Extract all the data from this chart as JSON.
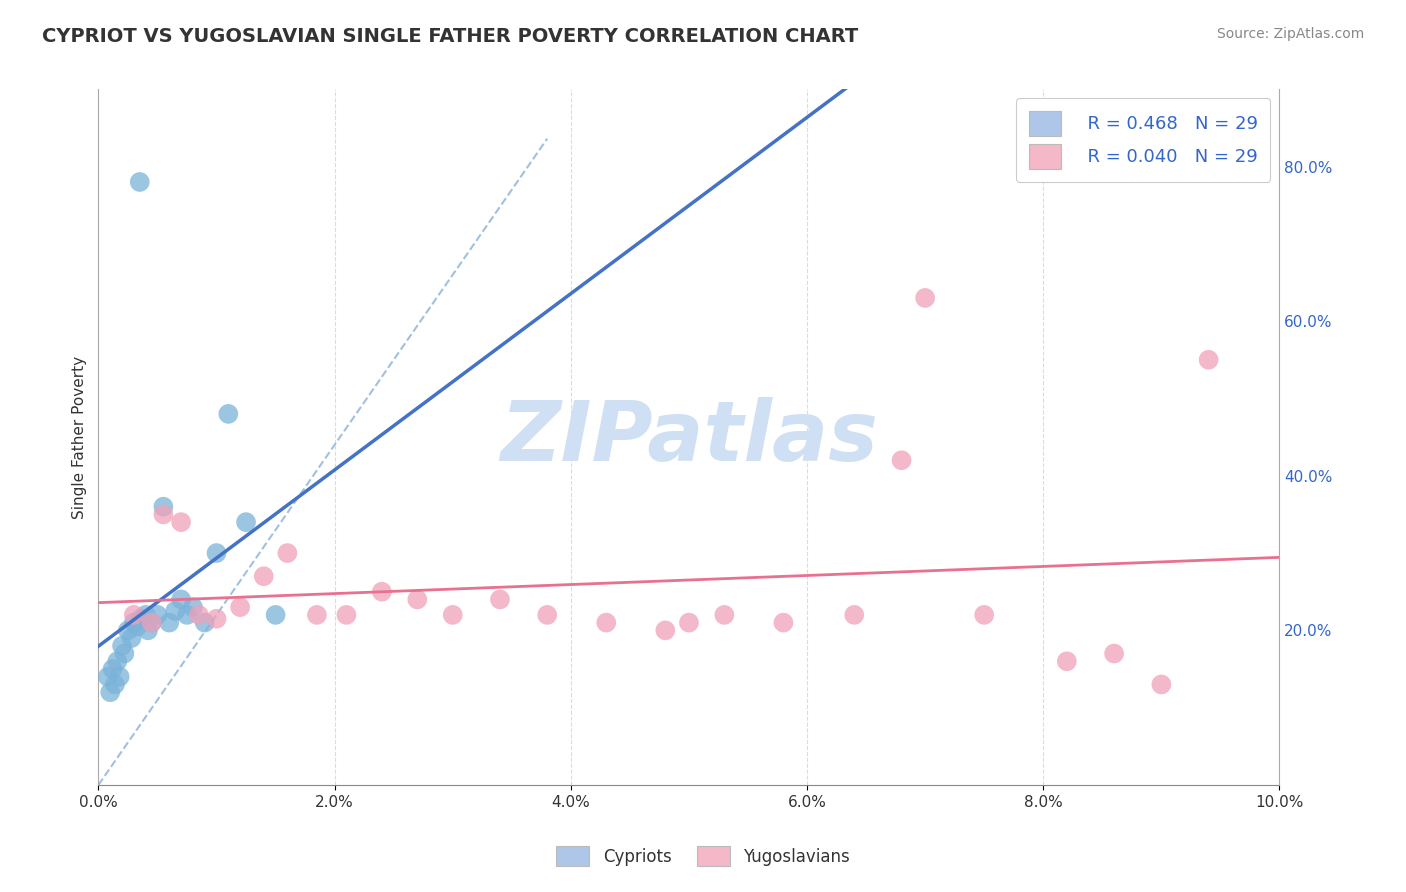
{
  "title": "CYPRIOT VS YUGOSLAVIAN SINGLE FATHER POVERTY CORRELATION CHART",
  "source": "Source: ZipAtlas.com",
  "ylabel": "Single Father Poverty",
  "xlim": [
    0.0,
    10.0
  ],
  "ylim": [
    0.0,
    90.0
  ],
  "right_yticks": [
    20.0,
    40.0,
    60.0,
    80.0
  ],
  "legend_entries": [
    {
      "label": "Cypriots",
      "R": "0.468",
      "N": "29",
      "color": "#aec6e8"
    },
    {
      "label": "Yugoslavians",
      "R": "0.040",
      "N": "29",
      "color": "#f4b8c8"
    }
  ],
  "cypriot_x": [
    0.08,
    0.1,
    0.12,
    0.14,
    0.16,
    0.18,
    0.2,
    0.22,
    0.25,
    0.28,
    0.3,
    0.33,
    0.36,
    0.4,
    0.42,
    0.45,
    0.5,
    0.55,
    0.6,
    0.65,
    0.7,
    0.75,
    0.8,
    0.9,
    1.0,
    1.1,
    1.25,
    1.5,
    0.35
  ],
  "cypriot_y": [
    14.0,
    12.0,
    15.0,
    13.0,
    16.0,
    14.0,
    18.0,
    17.0,
    20.0,
    19.0,
    21.0,
    20.5,
    21.5,
    22.0,
    20.0,
    21.0,
    22.0,
    36.0,
    21.0,
    22.5,
    24.0,
    22.0,
    23.0,
    21.0,
    30.0,
    48.0,
    34.0,
    22.0,
    78.0
  ],
  "yugoslav_x": [
    0.3,
    0.45,
    0.55,
    0.7,
    0.85,
    1.0,
    1.2,
    1.4,
    1.6,
    1.85,
    2.1,
    2.4,
    2.7,
    3.0,
    3.4,
    3.8,
    4.3,
    4.8,
    5.3,
    5.8,
    6.4,
    7.0,
    7.5,
    8.2,
    8.6,
    9.0,
    9.4,
    6.8,
    5.0
  ],
  "yugoslav_y": [
    22.0,
    21.0,
    35.0,
    34.0,
    22.0,
    21.5,
    23.0,
    27.0,
    30.0,
    22.0,
    22.0,
    25.0,
    24.0,
    22.0,
    24.0,
    22.0,
    21.0,
    20.0,
    22.0,
    21.0,
    22.0,
    63.0,
    22.0,
    16.0,
    17.0,
    13.0,
    55.0,
    42.0,
    21.0
  ],
  "cypriot_color": "#7ab3d9",
  "yugoslav_color": "#f0a0b8",
  "cypriot_line_color": "#4472c4",
  "yugoslav_line_color": "#e87090",
  "diagonal_color": "#8ab0d8",
  "watermark_text": "ZIPatlas",
  "watermark_color": "#d0e0f4",
  "grid_color": "#cccccc",
  "grid_style": "--",
  "bottom_legend_labels": [
    "Cypriots",
    "Yugoslavians"
  ],
  "bottom_legend_colors": [
    "#aec6e8",
    "#f4b8c8"
  ]
}
